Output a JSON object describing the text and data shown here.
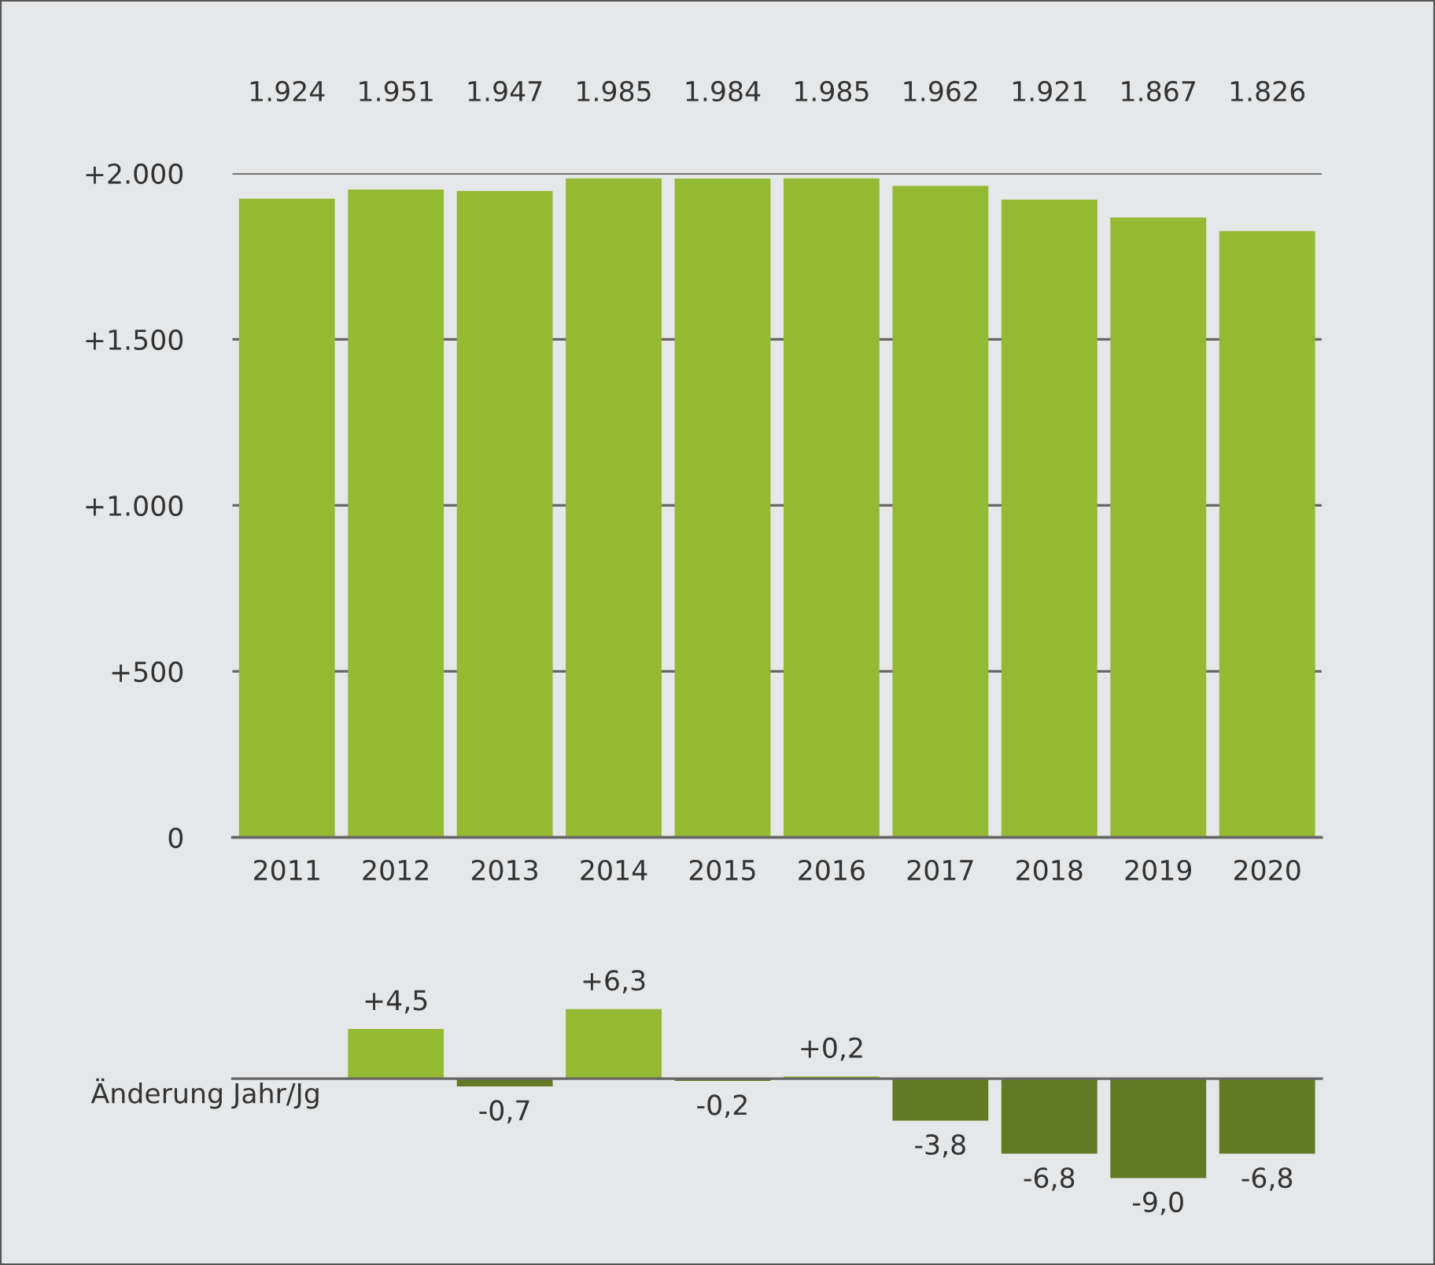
{
  "chart_data": [
    {
      "type": "bar",
      "categories": [
        "2011",
        "2012",
        "2013",
        "2014",
        "2015",
        "2016",
        "2017",
        "2018",
        "2019",
        "2020"
      ],
      "values": [
        1924,
        1951,
        1947,
        1985,
        1984,
        1985,
        1962,
        1921,
        1867,
        1826
      ],
      "value_labels": [
        "1.924",
        "1.951",
        "1.947",
        "1.985",
        "1.984",
        "1.985",
        "1.962",
        "1.921",
        "1.867",
        "1.826"
      ],
      "color": "#94b933",
      "ylim": [
        0,
        2000
      ],
      "yticks": [
        {
          "value": 0,
          "label": "0"
        },
        {
          "value": 500,
          "label": "+500"
        },
        {
          "value": 1000,
          "label": "+1.000"
        },
        {
          "value": 1500,
          "label": "+1.500"
        },
        {
          "value": 2000,
          "label": "+2.000"
        }
      ],
      "grid": "y",
      "legend": false
    },
    {
      "type": "bar",
      "categories": [
        null,
        null,
        null,
        null,
        null,
        null,
        null,
        null,
        null,
        null
      ],
      "ylabel": "Änderung Jahr/Jg",
      "values": [
        null,
        4.5,
        -0.7,
        6.3,
        -0.2,
        0.2,
        -3.8,
        -6.8,
        -9.0,
        -6.8
      ],
      "value_labels": [
        null,
        "+4,5",
        "-0,7",
        "+6,3",
        "-0,2",
        "+0,2",
        "-3,8",
        "-6,8",
        "-9,0",
        "-6,8"
      ],
      "colors": [
        "#94b933",
        "#94b933",
        "#627a23",
        "#94b933",
        "#627a23",
        "#94b933",
        "#627a23",
        "#627a23",
        "#627a23",
        "#627a23"
      ],
      "tick_labels": false,
      "legend": false
    }
  ]
}
